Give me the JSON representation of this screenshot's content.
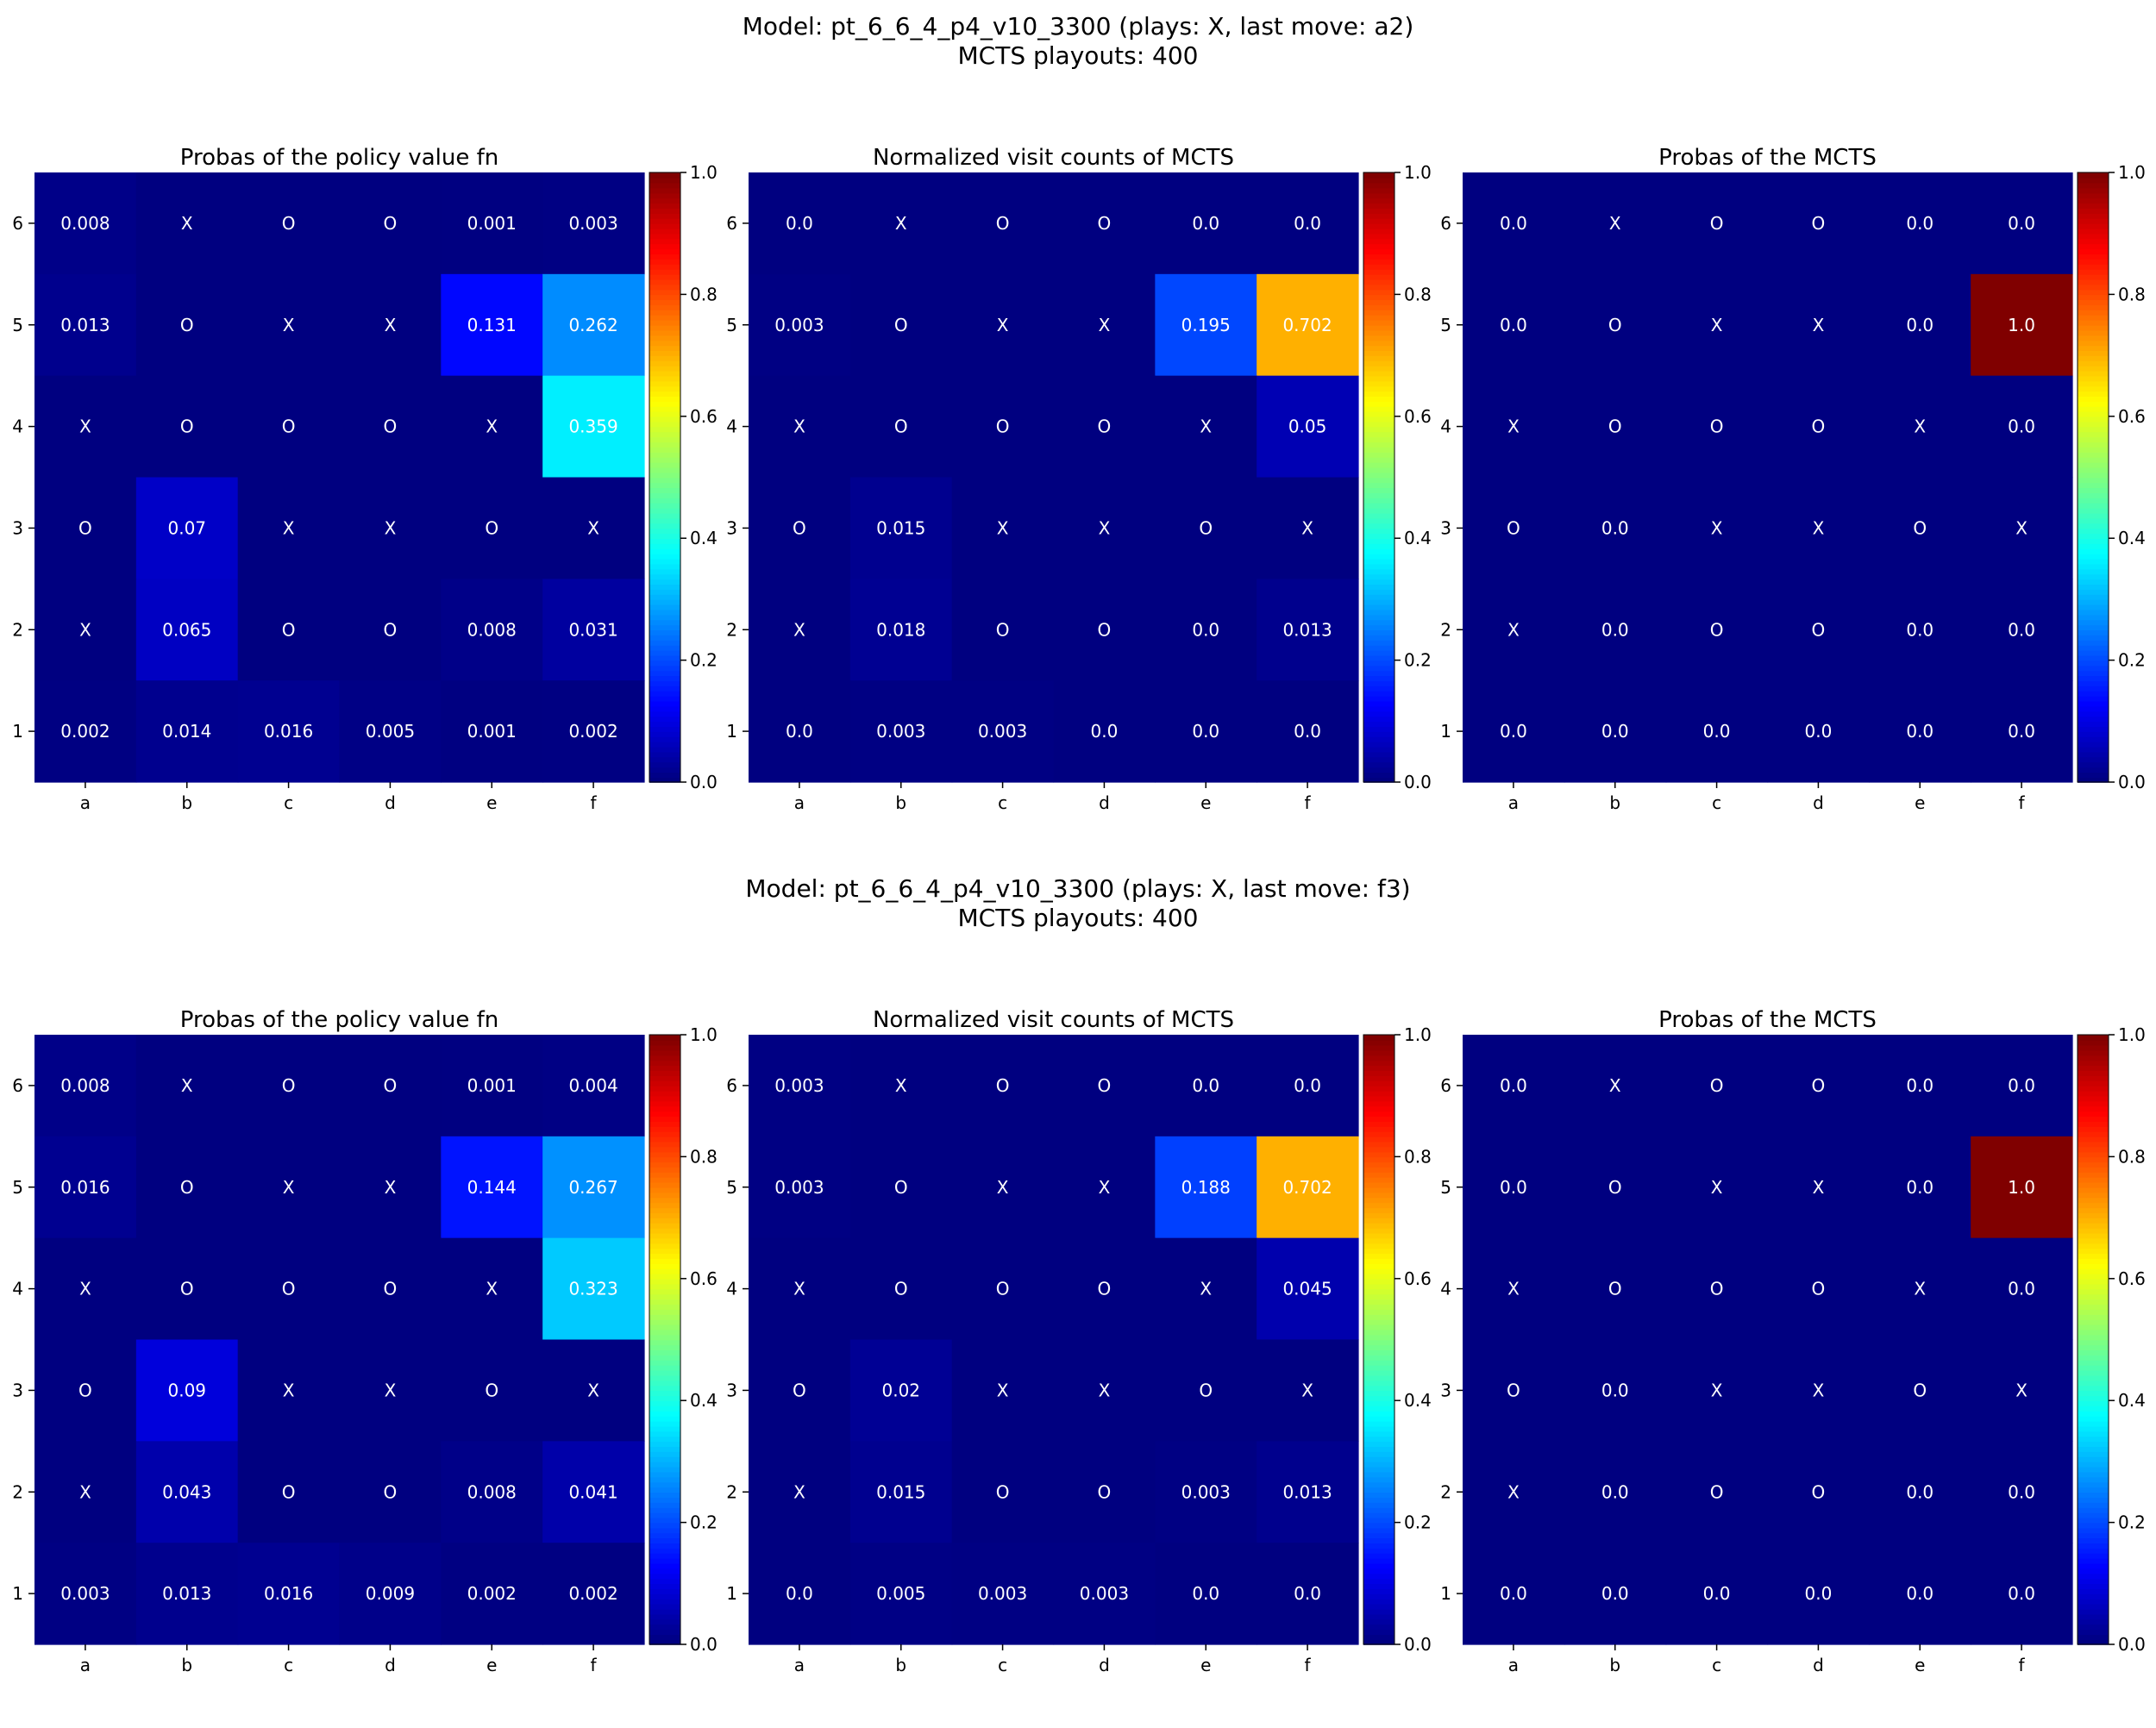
{
  "figure": {
    "rows": [
      {
        "title_line1": "Model: pt_6_6_4_p4_v10_3300 (plays: X, last move: a2)",
        "title_line2": "MCTS playouts: 400"
      },
      {
        "title_line1": "Model: pt_6_6_4_p4_v10_3300 (plays: X, last move: f3)",
        "title_line2": "MCTS playouts: 400"
      }
    ]
  },
  "colormap": "jet",
  "chart_data": [
    {
      "type": "heatmap",
      "title": "Probas of the policy value fn",
      "x_ticks": [
        "a",
        "b",
        "c",
        "d",
        "e",
        "f"
      ],
      "y_ticks": [
        "6",
        "5",
        "4",
        "3",
        "2",
        "1"
      ],
      "colorbar_ticks": [
        "0.0",
        "0.2",
        "0.4",
        "0.6",
        "0.8",
        "1.0"
      ],
      "zlim": [
        0,
        1
      ],
      "cells": [
        [
          "0.008",
          "X",
          "O",
          "O",
          "0.001",
          "0.003"
        ],
        [
          "0.013",
          "O",
          "X",
          "X",
          "0.131",
          "0.262"
        ],
        [
          "X",
          "O",
          "O",
          "O",
          "X",
          "0.359"
        ],
        [
          "O",
          "0.07",
          "X",
          "X",
          "O",
          "X"
        ],
        [
          "X",
          "0.065",
          "O",
          "O",
          "0.008",
          "0.031"
        ],
        [
          "0.002",
          "0.014",
          "0.016",
          "0.005",
          "0.001",
          "0.002"
        ]
      ]
    },
    {
      "type": "heatmap",
      "title": "Normalized visit counts of MCTS",
      "x_ticks": [
        "a",
        "b",
        "c",
        "d",
        "e",
        "f"
      ],
      "y_ticks": [
        "6",
        "5",
        "4",
        "3",
        "2",
        "1"
      ],
      "colorbar_ticks": [
        "0.0",
        "0.2",
        "0.4",
        "0.6",
        "0.8",
        "1.0"
      ],
      "zlim": [
        0,
        1
      ],
      "cells": [
        [
          "0.0",
          "X",
          "O",
          "O",
          "0.0",
          "0.0"
        ],
        [
          "0.003",
          "O",
          "X",
          "X",
          "0.195",
          "0.702"
        ],
        [
          "X",
          "O",
          "O",
          "O",
          "X",
          "0.05"
        ],
        [
          "O",
          "0.015",
          "X",
          "X",
          "O",
          "X"
        ],
        [
          "X",
          "0.018",
          "O",
          "O",
          "0.0",
          "0.013"
        ],
        [
          "0.0",
          "0.003",
          "0.003",
          "0.0",
          "0.0",
          "0.0"
        ]
      ]
    },
    {
      "type": "heatmap",
      "title": "Probas of the MCTS",
      "x_ticks": [
        "a",
        "b",
        "c",
        "d",
        "e",
        "f"
      ],
      "y_ticks": [
        "6",
        "5",
        "4",
        "3",
        "2",
        "1"
      ],
      "colorbar_ticks": [
        "0.0",
        "0.2",
        "0.4",
        "0.6",
        "0.8",
        "1.0"
      ],
      "zlim": [
        0,
        1
      ],
      "cells": [
        [
          "0.0",
          "X",
          "O",
          "O",
          "0.0",
          "0.0"
        ],
        [
          "0.0",
          "O",
          "X",
          "X",
          "0.0",
          "1.0"
        ],
        [
          "X",
          "O",
          "O",
          "O",
          "X",
          "0.0"
        ],
        [
          "O",
          "0.0",
          "X",
          "X",
          "O",
          "X"
        ],
        [
          "X",
          "0.0",
          "O",
          "O",
          "0.0",
          "0.0"
        ],
        [
          "0.0",
          "0.0",
          "0.0",
          "0.0",
          "0.0",
          "0.0"
        ]
      ]
    },
    {
      "type": "heatmap",
      "title": "Probas of the policy value fn",
      "x_ticks": [
        "a",
        "b",
        "c",
        "d",
        "e",
        "f"
      ],
      "y_ticks": [
        "6",
        "5",
        "4",
        "3",
        "2",
        "1"
      ],
      "colorbar_ticks": [
        "0.0",
        "0.2",
        "0.4",
        "0.6",
        "0.8",
        "1.0"
      ],
      "zlim": [
        0,
        1
      ],
      "cells": [
        [
          "0.008",
          "X",
          "O",
          "O",
          "0.001",
          "0.004"
        ],
        [
          "0.016",
          "O",
          "X",
          "X",
          "0.144",
          "0.267"
        ],
        [
          "X",
          "O",
          "O",
          "O",
          "X",
          "0.323"
        ],
        [
          "O",
          "0.09",
          "X",
          "X",
          "O",
          "X"
        ],
        [
          "X",
          "0.043",
          "O",
          "O",
          "0.008",
          "0.041"
        ],
        [
          "0.003",
          "0.013",
          "0.016",
          "0.009",
          "0.002",
          "0.002"
        ]
      ]
    },
    {
      "type": "heatmap",
      "title": "Normalized visit counts of MCTS",
      "x_ticks": [
        "a",
        "b",
        "c",
        "d",
        "e",
        "f"
      ],
      "y_ticks": [
        "6",
        "5",
        "4",
        "3",
        "2",
        "1"
      ],
      "colorbar_ticks": [
        "0.0",
        "0.2",
        "0.4",
        "0.6",
        "0.8",
        "1.0"
      ],
      "zlim": [
        0,
        1
      ],
      "cells": [
        [
          "0.003",
          "X",
          "O",
          "O",
          "0.0",
          "0.0"
        ],
        [
          "0.003",
          "O",
          "X",
          "X",
          "0.188",
          "0.702"
        ],
        [
          "X",
          "O",
          "O",
          "O",
          "X",
          "0.045"
        ],
        [
          "O",
          "0.02",
          "X",
          "X",
          "O",
          "X"
        ],
        [
          "X",
          "0.015",
          "O",
          "O",
          "0.003",
          "0.013"
        ],
        [
          "0.0",
          "0.005",
          "0.003",
          "0.003",
          "0.0",
          "0.0"
        ]
      ]
    },
    {
      "type": "heatmap",
      "title": "Probas of the MCTS",
      "x_ticks": [
        "a",
        "b",
        "c",
        "d",
        "e",
        "f"
      ],
      "y_ticks": [
        "6",
        "5",
        "4",
        "3",
        "2",
        "1"
      ],
      "colorbar_ticks": [
        "0.0",
        "0.2",
        "0.4",
        "0.6",
        "0.8",
        "1.0"
      ],
      "zlim": [
        0,
        1
      ],
      "cells": [
        [
          "0.0",
          "X",
          "O",
          "O",
          "0.0",
          "0.0"
        ],
        [
          "0.0",
          "O",
          "X",
          "X",
          "0.0",
          "1.0"
        ],
        [
          "X",
          "O",
          "O",
          "O",
          "X",
          "0.0"
        ],
        [
          "O",
          "0.0",
          "X",
          "X",
          "O",
          "X"
        ],
        [
          "X",
          "0.0",
          "O",
          "O",
          "0.0",
          "0.0"
        ],
        [
          "0.0",
          "0.0",
          "0.0",
          "0.0",
          "0.0",
          "0.0"
        ]
      ]
    }
  ]
}
